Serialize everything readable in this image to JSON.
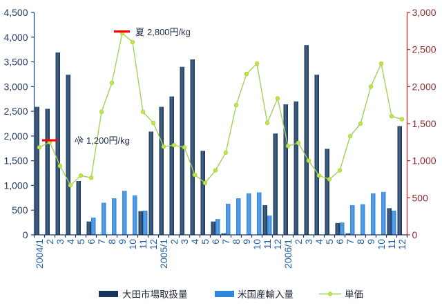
{
  "chart_data": {
    "type": "bar",
    "categories": [
      "2004/1",
      "2",
      "3",
      "4",
      "5",
      "6",
      "7",
      "8",
      "9",
      "10",
      "11",
      "12",
      "2005/1",
      "2",
      "3",
      "4",
      "5",
      "6",
      "7",
      "8",
      "9",
      "10",
      "11",
      "12",
      "2006/1",
      "2",
      "3",
      "4",
      "5",
      "6",
      "7",
      "8",
      "9",
      "10",
      "11",
      "12"
    ],
    "series": [
      {
        "name": "大田市場取扱量",
        "type": "bar",
        "axis": "left",
        "color": "#17375e",
        "values": [
          2590,
          2550,
          3690,
          3240,
          1090,
          270,
          0,
          0,
          0,
          0,
          480,
          2090,
          2590,
          2800,
          3400,
          3550,
          1700,
          270,
          30,
          0,
          0,
          0,
          600,
          2050,
          2640,
          2700,
          3840,
          3240,
          1740,
          240,
          30,
          0,
          0,
          0,
          540,
          2200
        ]
      },
      {
        "name": "米国産輸入量",
        "type": "bar",
        "axis": "left",
        "color": "#2f86dc",
        "values": [
          0,
          0,
          0,
          0,
          0,
          350,
          650,
          740,
          890,
          800,
          490,
          0,
          0,
          0,
          0,
          0,
          0,
          320,
          630,
          740,
          840,
          860,
          390,
          0,
          0,
          0,
          0,
          0,
          0,
          250,
          600,
          620,
          840,
          870,
          490,
          0
        ]
      },
      {
        "name": "単価",
        "type": "line",
        "axis": "right",
        "color": "#9fd357",
        "marker_color": "#c8e33e",
        "values": [
          1180,
          1250,
          930,
          670,
          800,
          770,
          1660,
          2050,
          2720,
          2600,
          1660,
          1510,
          1190,
          1210,
          1180,
          810,
          700,
          870,
          1110,
          1750,
          2170,
          2310,
          1510,
          1840,
          1200,
          1240,
          1000,
          800,
          750,
          870,
          1330,
          1500,
          2000,
          2310,
          1600,
          1560
        ]
      }
    ],
    "y_left": {
      "min": 0,
      "max": 4500,
      "step": 500,
      "tick_labels": [
        "0",
        "500",
        "1,000",
        "1,500",
        "2,000",
        "2,500",
        "3,000",
        "3,500",
        "4,000",
        "4,500"
      ]
    },
    "y_right": {
      "min": 0,
      "max": 3000,
      "step": 500,
      "tick_labels": [
        "0",
        "500",
        "1,000",
        "1,500",
        "2,000",
        "2,500",
        "3,000"
      ]
    },
    "annotations": [
      {
        "season": "夏",
        "text": "2,800円/kg",
        "marker_color": "#ff0000"
      },
      {
        "season": "冬",
        "text": "1,200円/kg",
        "marker_color": "#ff0000"
      }
    ],
    "legend": "bottom",
    "grid": false
  }
}
